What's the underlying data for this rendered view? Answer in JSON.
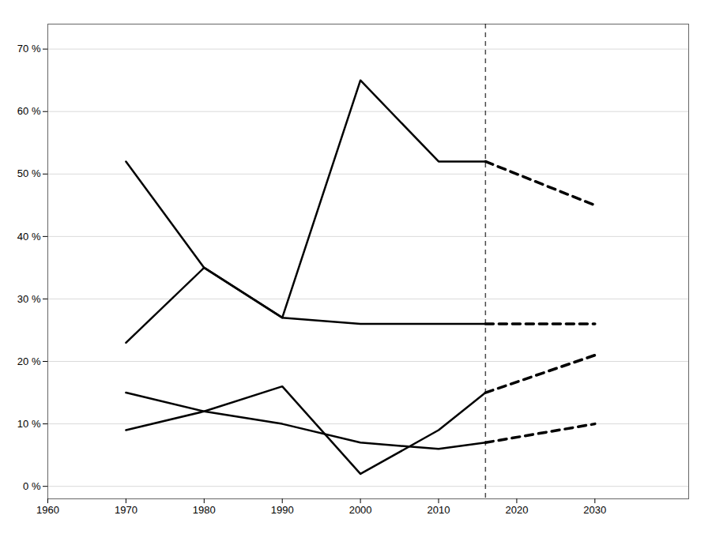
{
  "chart_data": {
    "type": "line",
    "x": [
      1970,
      1980,
      1990,
      2000,
      2010,
      2016,
      2030
    ],
    "series": [
      {
        "values": [
          52,
          35,
          27,
          65,
          52,
          52,
          null
        ],
        "line_style": "solid"
      },
      {
        "values": [
          null,
          null,
          null,
          null,
          null,
          52,
          45
        ],
        "line_style": "dashed"
      },
      {
        "values": [
          23,
          35,
          27,
          26,
          26,
          26,
          null
        ],
        "line_style": "solid"
      },
      {
        "values": [
          null,
          null,
          null,
          null,
          null,
          26,
          26
        ],
        "line_style": "dashed"
      },
      {
        "values": [
          9,
          12,
          16,
          2,
          9,
          15,
          null
        ],
        "line_style": "solid"
      },
      {
        "values": [
          null,
          null,
          null,
          null,
          null,
          15,
          21
        ],
        "line_style": "dashed"
      },
      {
        "values": [
          15,
          12,
          10,
          7,
          6,
          7,
          null
        ],
        "line_style": "solid"
      },
      {
        "values": [
          null,
          null,
          null,
          null,
          null,
          7,
          10
        ],
        "line_style": "dashed"
      }
    ],
    "xlim": [
      1960,
      2042
    ],
    "ylim": [
      -2,
      74
    ],
    "xticks": [
      1960,
      1970,
      1980,
      1990,
      2000,
      2010,
      2020,
      2030
    ],
    "yticks": [
      {
        "value": 0,
        "label": "0 %"
      },
      {
        "value": 10,
        "label": "10 %"
      },
      {
        "value": 20,
        "label": "20 %"
      },
      {
        "value": 30,
        "label": "30 %"
      },
      {
        "value": 40,
        "label": "40 %"
      },
      {
        "value": 50,
        "label": "50 %"
      },
      {
        "value": 60,
        "label": "60 %"
      },
      {
        "value": 70,
        "label": "70 %"
      }
    ],
    "grid": true,
    "annotations": [
      {
        "type": "vline",
        "x": 2016,
        "line_style": "dashed"
      }
    ]
  }
}
